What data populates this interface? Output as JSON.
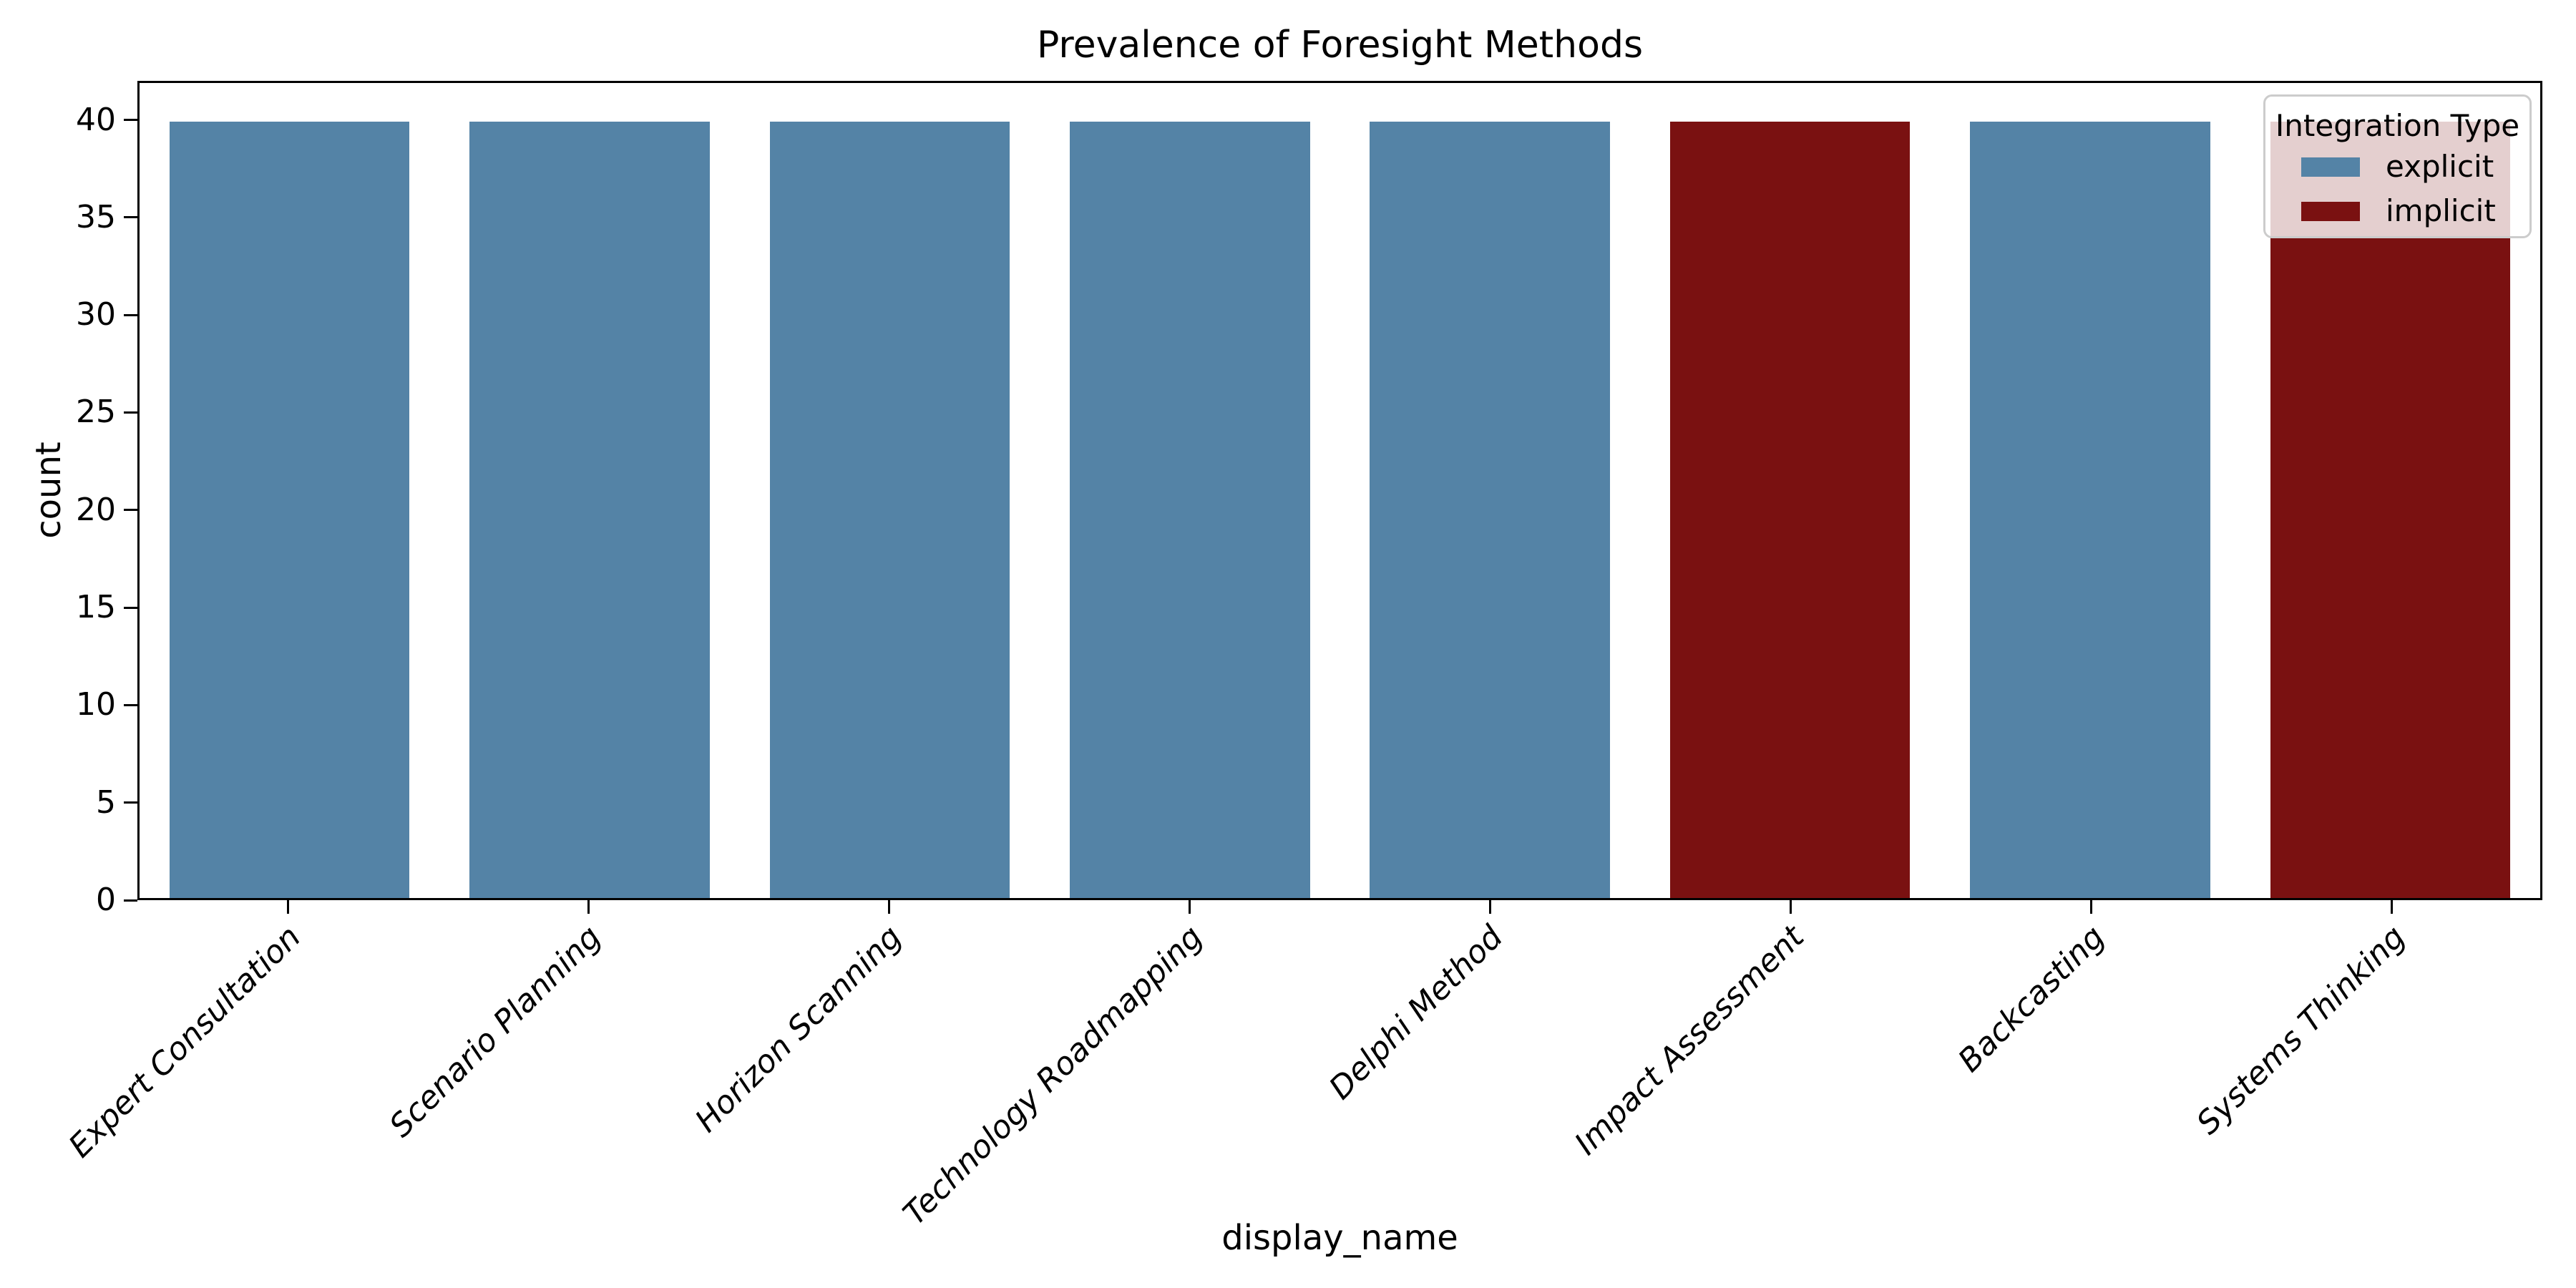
{
  "chart_data": {
    "type": "bar",
    "title": "Prevalence of Foresight Methods",
    "xlabel": "display_name",
    "ylabel": "count",
    "categories": [
      "Expert Consultation",
      "Scenario Planning",
      "Horizon Scanning",
      "Technology Roadmapping",
      "Delphi Method",
      "Impact Assessment",
      "Backcasting",
      "Systems Thinking"
    ],
    "values": [
      40,
      40,
      40,
      40,
      40,
      40,
      40,
      40
    ],
    "integration_type": [
      "explicit",
      "explicit",
      "explicit",
      "explicit",
      "explicit",
      "implicit",
      "explicit",
      "implicit"
    ],
    "yticks": [
      0,
      5,
      10,
      15,
      20,
      25,
      30,
      35,
      40
    ],
    "ylim": [
      0,
      42
    ],
    "grid": false,
    "bar_colors": {
      "explicit": "#5483A6",
      "implicit": "#7A1111"
    },
    "legend": {
      "title": "Integration Type",
      "position": "upper-right",
      "entries": [
        {
          "label": "explicit",
          "color": "#5483A6"
        },
        {
          "label": "implicit",
          "color": "#7A1111"
        }
      ]
    }
  }
}
